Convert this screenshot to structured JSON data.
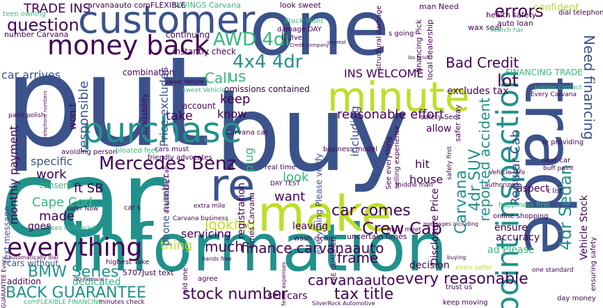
{
  "cloud": {
    "palette": {
      "dark_purple": "#440154",
      "indigo": "#3b528b",
      "teal": "#21918c",
      "green": "#35b779",
      "lime": "#90d743",
      "yellow": "#bddf26"
    },
    "words": [
      {
        "text": "put",
        "color": "#3b528b"
      },
      {
        "text": "car",
        "color": "#21918c"
      },
      {
        "text": "buy",
        "color": "#3b528b"
      },
      {
        "text": "information",
        "color": "#21918c"
      },
      {
        "text": "one",
        "color": "#3b528b"
      },
      {
        "text": "trade",
        "color": "#3b528b"
      },
      {
        "text": "make",
        "color": "#bddf26"
      },
      {
        "text": "customer",
        "color": "#3b528b"
      },
      {
        "text": "minute",
        "color": "#bddf26"
      },
      {
        "text": "purchase",
        "color": "#21918c"
      },
      {
        "text": "money back",
        "color": "#440154"
      },
      {
        "text": "everything",
        "color": "#440154"
      },
      {
        "text": "point inspection",
        "color": "#21918c"
      },
      {
        "text": "re",
        "color": "#3b528b"
      },
      {
        "text": "Mercedes Benz",
        "color": "#440154"
      },
      {
        "text": "finance carvanaauto",
        "color": "#440154"
      },
      {
        "text": "BMW Series",
        "color": "#21918c"
      },
      {
        "text": "BACK GUARANTEE",
        "color": "#21918c"
      },
      {
        "text": "stock number",
        "color": "#440154"
      },
      {
        "text": "reasonable effort",
        "color": "#440154"
      },
      {
        "text": "every reasonable",
        "color": "#440154"
      },
      {
        "text": "Crew Cab",
        "color": "#440154"
      },
      {
        "text": "4dr Sedan",
        "color": "#21918c"
      },
      {
        "text": "AWD 4dr",
        "color": "#35b779"
      },
      {
        "text": "4x4 4dr",
        "color": "#21918c"
      },
      {
        "text": "question",
        "color": "#440154"
      },
      {
        "text": "TRADE INS",
        "color": "#440154"
      },
      {
        "text": "errors",
        "color": "#440154"
      },
      {
        "text": "Bad Credit",
        "color": "#440154"
      },
      {
        "text": "Cape Cod",
        "color": "#35b779"
      },
      {
        "text": "carvanaauto",
        "color": "#440154"
      },
      {
        "text": "tax title",
        "color": "#440154"
      },
      {
        "text": "frame",
        "color": "#440154"
      },
      {
        "text": "car comes",
        "color": "#440154"
      },
      {
        "text": "Carvana",
        "color": "#21918c"
      },
      {
        "text": "4dr SUV",
        "color": "#21918c"
      },
      {
        "text": "Need financing",
        "color": "#3b528b"
      },
      {
        "text": "lot",
        "color": "#440154"
      },
      {
        "text": "INS WELCOME",
        "color": "#440154"
      },
      {
        "text": "monthly payment",
        "color": "#440154"
      },
      {
        "text": "Call",
        "color": "#35b779"
      },
      {
        "text": "us",
        "color": "#35b779"
      },
      {
        "text": "keep",
        "color": "#440154"
      },
      {
        "text": "know",
        "color": "#440154"
      },
      {
        "text": "take",
        "color": "#440154"
      },
      {
        "text": "looking",
        "color": "#bddf26"
      },
      {
        "text": "much",
        "color": "#440154"
      },
      {
        "text": "thing",
        "color": "#bddf26"
      },
      {
        "text": "want",
        "color": "#440154"
      },
      {
        "text": "look",
        "color": "#35b779"
      },
      {
        "text": "ft SB",
        "color": "#440154"
      },
      {
        "text": "made",
        "color": "#440154"
      },
      {
        "text": "work",
        "color": "#440154"
      },
      {
        "text": "goes",
        "color": "#440154"
      },
      {
        "text": "specific",
        "color": "#3b528b"
      },
      {
        "text": "responsible",
        "color": "#3b528b"
      },
      {
        "text": "Price excludes",
        "color": "#3b528b"
      },
      {
        "text": "combination",
        "color": "#440154"
      },
      {
        "text": "car arrives",
        "color": "#3b528b"
      },
      {
        "text": "confident",
        "color": "#bddf26"
      },
      {
        "text": "FINANCING TRADE",
        "color": "#35b779"
      },
      {
        "text": "excludes tax",
        "color": "#440154"
      },
      {
        "text": "omissions contained",
        "color": "#440154"
      },
      {
        "text": "including",
        "color": "#3b528b"
      },
      {
        "text": "reported accident",
        "color": "#21918c"
      },
      {
        "text": "Regular Cab",
        "color": "#3b528b"
      },
      {
        "text": "house",
        "color": "#440154"
      },
      {
        "text": "hit",
        "color": "#440154"
      },
      {
        "text": "allow",
        "color": "#440154"
      },
      {
        "text": "aspect",
        "color": "#440154"
      },
      {
        "text": "ensure",
        "color": "#440154"
      },
      {
        "text": "accuracy",
        "color": "#440154"
      },
      {
        "text": "ad Please",
        "color": "#35b779"
      },
      {
        "text": "Vehicle Stock",
        "color": "#440154"
      },
      {
        "text": "servicing",
        "color": "#440154"
      },
      {
        "text": "leaving",
        "color": "#440154"
      },
      {
        "text": "everything Please verify",
        "color": "#3b528b"
      },
      {
        "text": "text message",
        "color": "#3b528b"
      },
      {
        "text": "cars without",
        "color": "#3b528b"
      },
      {
        "text": "addition",
        "color": "#440154"
      },
      {
        "text": "dedicated",
        "color": "#35b779"
      },
      {
        "text": "sell cars",
        "color": "#440154"
      },
      {
        "text": "decision",
        "color": "#440154"
      },
      {
        "text": "registration",
        "color": "#440154"
      },
      {
        "text": "plug",
        "color": "#35b779"
      },
      {
        "text": "phone number",
        "color": "#3b528b"
      },
      {
        "text": "won t",
        "color": "#440154"
      },
      {
        "text": "instantly check",
        "color": "#440154"
      },
      {
        "text": "continuing",
        "color": "#440154"
      },
      {
        "text": "SAVINGS Carvana",
        "color": "#35b779"
      },
      {
        "text": "carvanaauto comFLEXIBLE",
        "color": "#440154"
      },
      {
        "text": "number Carvana",
        "color": "#440154"
      },
      {
        "text": "teen owning",
        "color": "#35b779"
      },
      {
        "text": "look sweet",
        "color": "#440154"
      },
      {
        "text": "man Need",
        "color": "#440154"
      },
      {
        "text": "health safety",
        "color": "#440154"
      },
      {
        "text": "auto loan",
        "color": "#440154"
      },
      {
        "text": "dial telephone",
        "color": "#440154"
      },
      {
        "text": "wax seal",
        "color": "#440154"
      },
      {
        "text": "s going",
        "color": "#440154"
      },
      {
        "text": "Stock Want",
        "color": "#35b779"
      },
      {
        "text": "damage DAY",
        "color": "#440154"
      },
      {
        "text": "ll give",
        "color": "#440154"
      },
      {
        "text": "business model",
        "color": "#440154"
      },
      {
        "text": "real time",
        "color": "#440154"
      },
      {
        "text": "DAY TEST",
        "color": "#440154"
      },
      {
        "text": "Carvana car",
        "color": "#440154"
      },
      {
        "text": "sweet Vehicle",
        "color": "#35b779"
      },
      {
        "text": "account",
        "color": "#440154"
      },
      {
        "text": "availability",
        "color": "#440154"
      },
      {
        "text": "cars must",
        "color": "#440154"
      },
      {
        "text": "friendly advocates",
        "color": "#440154"
      },
      {
        "text": "avoiding person",
        "color": "#440154"
      },
      {
        "text": "bloated fees",
        "color": "#35b779"
      },
      {
        "text": "consent",
        "color": "#35b779"
      },
      {
        "text": "safer Now",
        "color": "#440154"
      },
      {
        "text": "fees compared",
        "color": "#35b779"
      },
      {
        "text": "Carvana business",
        "color": "#440154"
      },
      {
        "text": "extra mile",
        "color": "#440154"
      },
      {
        "text": "wash clean",
        "color": "#440154"
      },
      {
        "text": "times Carvana",
        "color": "#440154"
      },
      {
        "text": "uncertain times",
        "color": "#440154"
      },
      {
        "text": "PRE QUALIFIED",
        "color": "#440154"
      },
      {
        "text": "must meet",
        "color": "#440154"
      },
      {
        "text": "5707Just text",
        "color": "#440154"
      },
      {
        "text": "highest Take",
        "color": "#440154"
      },
      {
        "text": "minutes check",
        "color": "#440154"
      },
      {
        "text": "comFLEXIBLE FINANCING",
        "color": "#35b779"
      },
      {
        "text": "old one",
        "color": "#440154"
      },
      {
        "text": "agree",
        "color": "#440154"
      },
      {
        "text": "fewer expenses",
        "color": "#440154"
      },
      {
        "text": "SilverRock Automotive",
        "color": "#440154"
      },
      {
        "text": "keep moving",
        "color": "#440154"
      },
      {
        "text": "trust us",
        "color": "#440154"
      },
      {
        "text": "even safer",
        "color": "#bddf26"
      },
      {
        "text": "next car",
        "color": "#440154"
      },
      {
        "text": "buff paint",
        "color": "#440154"
      },
      {
        "text": "t list",
        "color": "#440154"
      },
      {
        "text": "happiness first",
        "color": "#35b779"
      },
      {
        "text": "online shopping",
        "color": "#440154"
      },
      {
        "text": "re providing",
        "color": "#440154"
      },
      {
        "text": "Every Carvana",
        "color": "#440154"
      },
      {
        "text": "person contact",
        "color": "#35b779"
      },
      {
        "text": "day money",
        "color": "#440154"
      },
      {
        "text": "one standard",
        "color": "#440154"
      },
      {
        "text": "ensuring safety",
        "color": "#440154"
      },
      {
        "text": "safety See",
        "color": "#440154"
      },
      {
        "text": "See everything",
        "color": "#440154"
      },
      {
        "text": "middle man",
        "color": "#440154"
      },
      {
        "text": "selling experience",
        "color": "#440154"
      },
      {
        "text": "Disclosure Price",
        "color": "#440154"
      },
      {
        "text": "safer way",
        "color": "#440154"
      },
      {
        "text": "structural damage",
        "color": "#440154"
      },
      {
        "text": "local dealership",
        "color": "#440154"
      },
      {
        "text": "financing Pick",
        "color": "#440154"
      },
      {
        "text": "search har",
        "color": "#35b779"
      },
      {
        "text": "Credit Company",
        "color": "#440154"
      },
      {
        "text": "Vehicle Info",
        "color": "#440154"
      },
      {
        "text": "authorized",
        "color": "#440154"
      },
      {
        "text": "paint polish",
        "color": "#440154"
      },
      {
        "text": "telephone numbers",
        "color": "#440154"
      },
      {
        "text": "availability Call",
        "color": "#440154"
      },
      {
        "text": "GUARANTEE Every",
        "color": "#440154"
      },
      {
        "text": "car s",
        "color": "#440154"
      },
      {
        "text": "hands free",
        "color": "#440154"
      },
      {
        "text": "lbs Drive",
        "color": "#440154"
      },
      {
        "text": "messages including",
        "color": "#440154"
      },
      {
        "text": "buying",
        "color": "#440154"
      },
      {
        "text": "automatically dial",
        "color": "#440154"
      },
      {
        "text": "GO Financial",
        "color": "#440154"
      },
      {
        "text": "safety first",
        "color": "#440154"
      },
      {
        "text": "interest",
        "color": "#440154"
      },
      {
        "text": "sweet Vehicle",
        "color": "#440154"
      }
    ]
  }
}
